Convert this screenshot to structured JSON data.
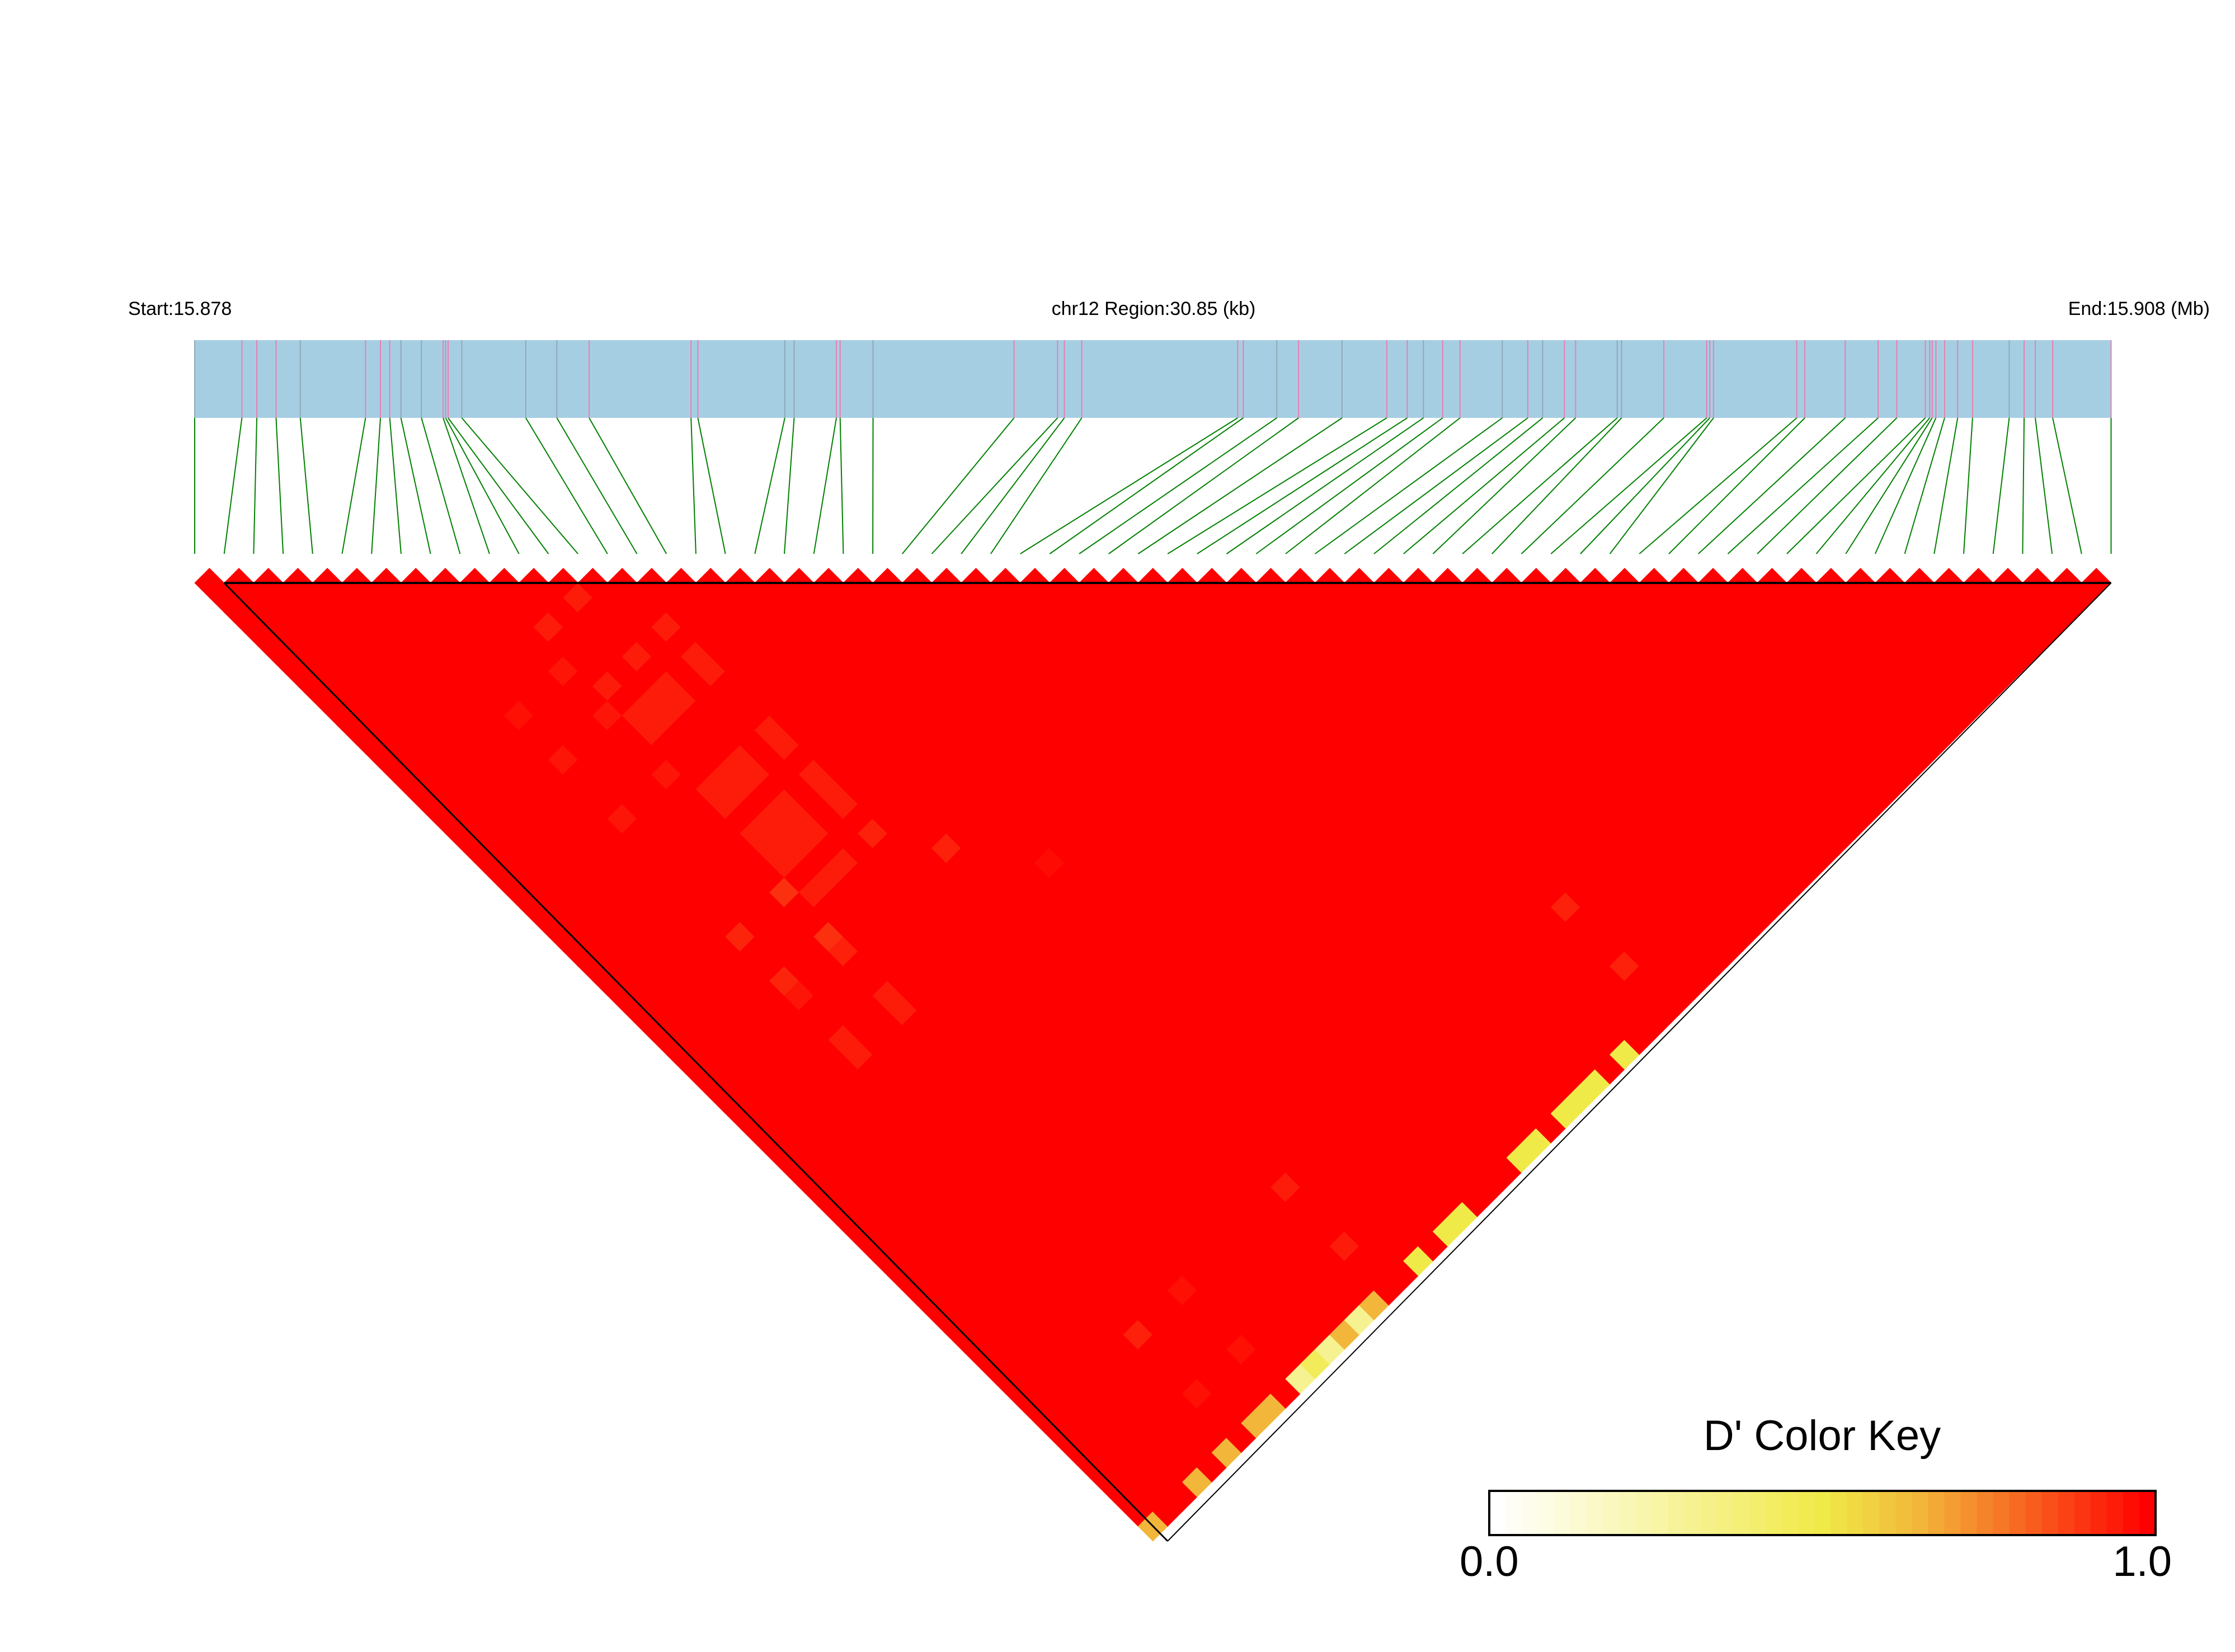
{
  "chart_data": {
    "type": "heatmap",
    "header": {
      "start_label": "Start:15.878",
      "region_label": "chr12 Region:30.85 (kb)",
      "end_label": "End:15.908 (Mb)"
    },
    "chromosome": "chr12",
    "region_start_mb": 15.878,
    "region_end_mb": 15.908,
    "region_length_kb": 30.85,
    "snp_positions_mb": [
      15.878,
      15.87876,
      15.879,
      15.87931,
      15.8797,
      15.88075,
      15.88099,
      15.88114,
      15.88132,
      15.88165,
      15.882,
      15.88204,
      15.88208,
      15.8823,
      15.88333,
      15.88383,
      15.88435,
      15.88599,
      15.8861,
      15.8875,
      15.88765,
      15.88833,
      15.88839,
      15.88892,
      15.89119,
      15.89189,
      15.892,
      15.89228,
      15.89479,
      15.89488,
      15.89542,
      15.89577,
      15.89647,
      15.89719,
      15.89752,
      15.89778,
      15.89809,
      15.89837,
      15.89905,
      15.89946,
      15.8997,
      15.90005,
      15.90023,
      15.9009,
      15.90097,
      15.90165,
      15.90234,
      15.90239,
      15.90245,
      15.90379,
      15.90392,
      15.90457,
      15.9051,
      15.9054,
      15.90586,
      15.90593,
      15.90597,
      15.90603,
      15.90617,
      15.90638,
      15.90662,
      15.90721,
      15.90745,
      15.90763,
      15.90791,
      15.90885
    ],
    "grey_marker_snps": [
      1,
      5,
      9,
      10,
      14,
      15,
      16,
      20,
      21,
      24,
      31,
      33,
      36,
      39,
      41,
      44,
      45,
      62
    ],
    "metric": "D'",
    "default_value": 1.0,
    "cells_note_format": "[snp_i, snp_j, D'] (1-based SNP order); all other pairs = default_value",
    "cells": [
      [
        13,
        15,
        0.95
      ],
      [
        11,
        15,
        0.95
      ],
      [
        15,
        19,
        0.95
      ],
      [
        13,
        19,
        0.95
      ],
      [
        11,
        19,
        0.95
      ],
      [
        15,
        21,
        0.95
      ],
      [
        15,
        22,
        0.95
      ],
      [
        10,
        17,
        0.96
      ],
      [
        11,
        21,
        0.95
      ],
      [
        12,
        21,
        0.95
      ],
      [
        13,
        21,
        0.95
      ],
      [
        11,
        22,
        0.95
      ],
      [
        12,
        22,
        0.95
      ],
      [
        13,
        22,
        0.95
      ],
      [
        10,
        20,
        0.96
      ],
      [
        7,
        17,
        0.97
      ],
      [
        15,
        26,
        0.95
      ],
      [
        15,
        27,
        0.95
      ],
      [
        7,
        20,
        0.96
      ],
      [
        10,
        24,
        0.96
      ],
      [
        11,
        26,
        0.95
      ],
      [
        12,
        26,
        0.95
      ],
      [
        13,
        26,
        0.95
      ],
      [
        11,
        27,
        0.95
      ],
      [
        12,
        27,
        0.95
      ],
      [
        13,
        27,
        0.95
      ],
      [
        15,
        29,
        0.95
      ],
      [
        15,
        30,
        0.95
      ],
      [
        15,
        31,
        0.95
      ],
      [
        7,
        24,
        0.96
      ],
      [
        11,
        29,
        0.95
      ],
      [
        12,
        29,
        0.95
      ],
      [
        13,
        29,
        0.95
      ],
      [
        11,
        30,
        0.95
      ],
      [
        12,
        30,
        0.95
      ],
      [
        13,
        30,
        0.95
      ],
      [
        11,
        31,
        0.95
      ],
      [
        12,
        31,
        0.95
      ],
      [
        13,
        31,
        0.95
      ],
      [
        15,
        33,
        0.94
      ],
      [
        17,
        36,
        0.94
      ],
      [
        20,
        40,
        0.98
      ],
      [
        13,
        33,
        0.95
      ],
      [
        12,
        33,
        0.95
      ],
      [
        11,
        33,
        0.95
      ],
      [
        10,
        32,
        0.91
      ],
      [
        7,
        32,
        0.93
      ],
      [
        10,
        35,
        0.91
      ],
      [
        10,
        36,
        0.94
      ],
      [
        7,
        35,
        0.93
      ],
      [
        7,
        36,
        0.96
      ],
      [
        10,
        39,
        0.95
      ],
      [
        10,
        40,
        0.95
      ],
      [
        7,
        39,
        0.95
      ],
      [
        7,
        40,
        0.95
      ],
      [
        36,
        59,
        0.94
      ],
      [
        36,
        63,
        0.94
      ],
      [
        17,
        59,
        0.95
      ],
      [
        17,
        63,
        0.95
      ],
      [
        10,
        59,
        0.97
      ],
      [
        7,
        59,
        0.94
      ],
      [
        10,
        63,
        0.97
      ],
      [
        7,
        63,
        0.97
      ],
      [
        33,
        66,
        0.5
      ],
      [
        31,
        66,
        0.5
      ],
      [
        30,
        66,
        0.5
      ],
      [
        29,
        66,
        0.5
      ],
      [
        27,
        66,
        0.5
      ],
      [
        26,
        66,
        0.5
      ],
      [
        22,
        66,
        0.5
      ],
      [
        21,
        66,
        0.5
      ],
      [
        19,
        66,
        0.5
      ],
      [
        16,
        66,
        0.65
      ],
      [
        15,
        66,
        0.3
      ],
      [
        14,
        66,
        0.65
      ],
      [
        13,
        66,
        0.3
      ],
      [
        12,
        66,
        0.45
      ],
      [
        11,
        66,
        0.3
      ],
      [
        9,
        66,
        0.65
      ],
      [
        8,
        66,
        0.65
      ],
      [
        6,
        66,
        0.65
      ],
      [
        4,
        66,
        0.65
      ],
      [
        1,
        66,
        0.65
      ]
    ],
    "color_key": {
      "title": "D' Color Key",
      "min_label": "0.0",
      "max_label": "1.0",
      "range": [
        0,
        1
      ],
      "stops": [
        [
          0,
          "#ffffff"
        ],
        [
          0.5,
          "#f0ea48"
        ],
        [
          0.65,
          "#f2b63a"
        ],
        [
          0.8,
          "#f76a22"
        ],
        [
          1,
          "#ff0000"
        ]
      ]
    },
    "colors": {
      "gene_bar": "#a6cee3",
      "snp_marker": "#e87fb0",
      "snp_marker_grey": "#8fa9b8",
      "connector": "#008000",
      "outline": "#000000"
    }
  }
}
